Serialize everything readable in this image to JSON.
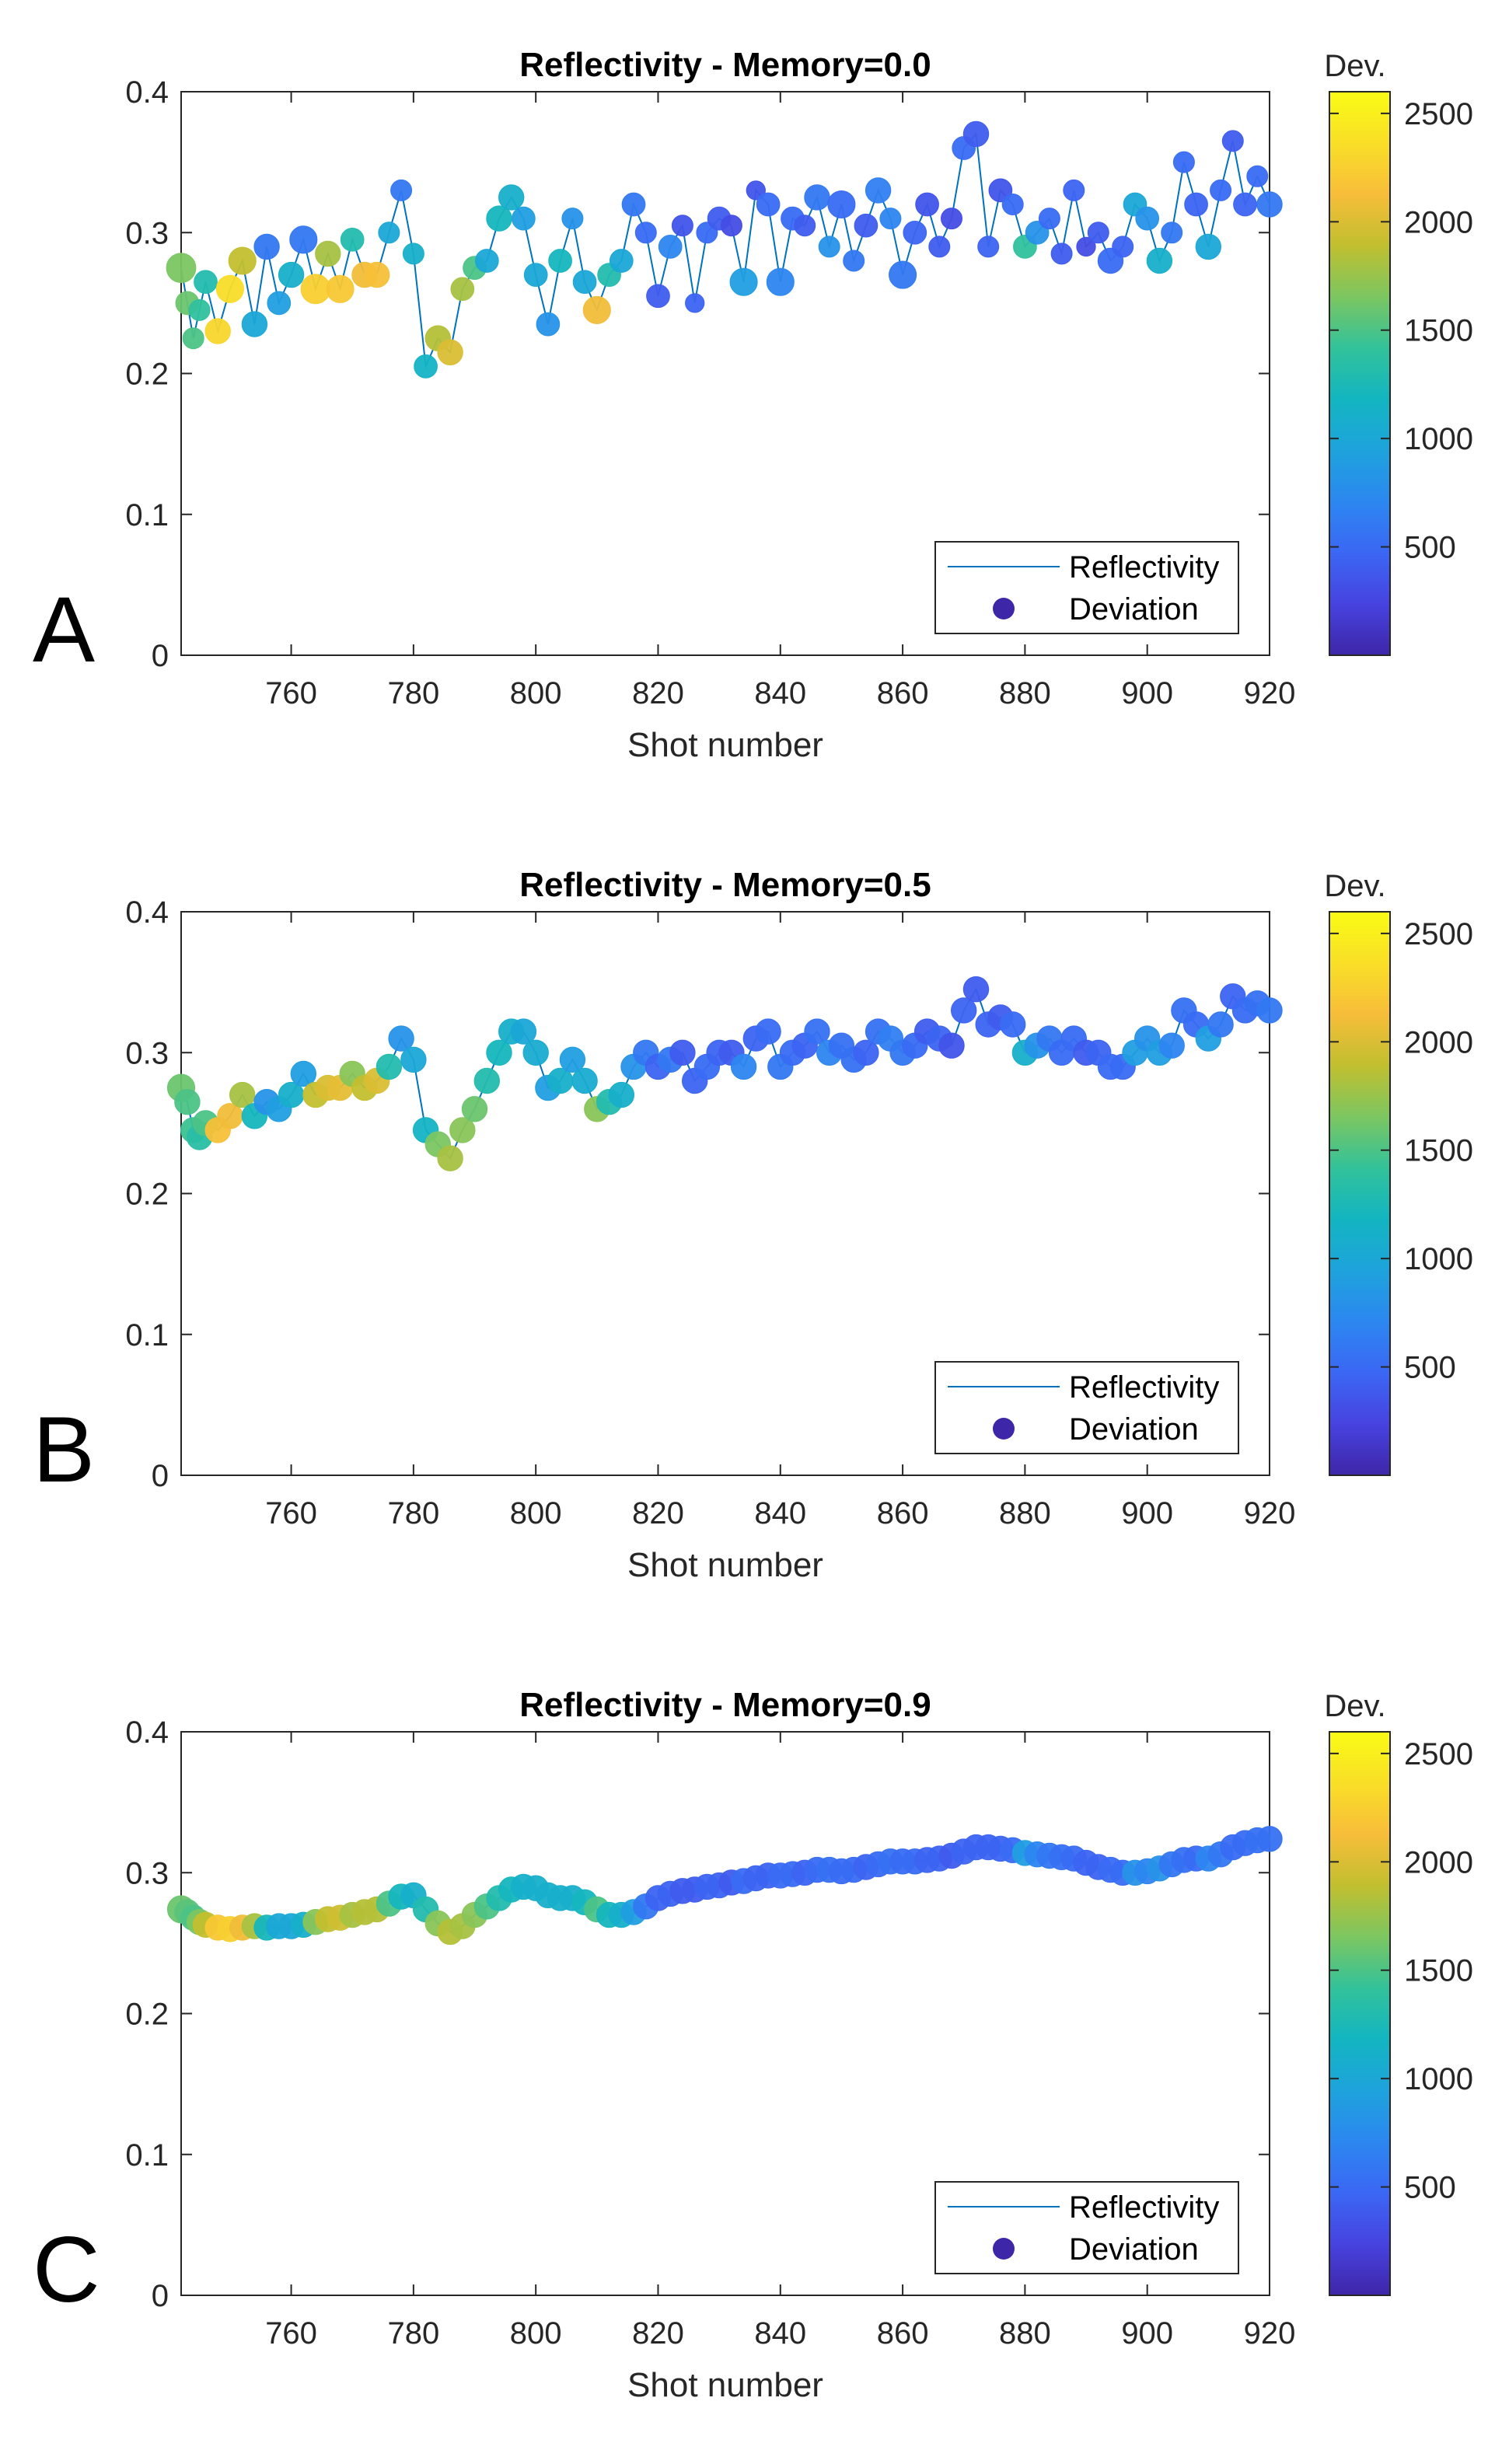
{
  "colormap": [
    "#3e26a8",
    "#4743e0",
    "#3b67f4",
    "#2c87f0",
    "#1ea3dc",
    "#13b5c1",
    "#32c29a",
    "#7cc661",
    "#c1bf2f",
    "#f7bd3a",
    "#f9df27",
    "#f9fb15"
  ],
  "line_color": "#0072bd",
  "chart_data": [
    {
      "type": "scatter",
      "panel_label": "A",
      "title": "Reflectivity  -  Memory=0.0",
      "xlabel": "Shot number",
      "ylabel": "",
      "xlim": [
        742,
        920
      ],
      "ylim": [
        0,
        0.4
      ],
      "xticks": [
        760,
        780,
        800,
        820,
        840,
        860,
        880,
        900,
        920
      ],
      "yticks": [
        0,
        0.1,
        0.2,
        0.3,
        0.4
      ],
      "ytick_labels": [
        "0",
        "0.1",
        "0.2",
        "0.3",
        "0.4"
      ],
      "legend": {
        "position": "lower-right",
        "entries": [
          "Reflectivity",
          "Deviation"
        ]
      },
      "colorbar": {
        "title": "Dev.",
        "range": [
          0,
          2600
        ],
        "ticks": [
          500,
          1000,
          1500,
          2000,
          2500
        ]
      },
      "series": [
        {
          "name": "Reflectivity",
          "kind": "line"
        },
        {
          "name": "Deviation",
          "kind": "markers",
          "color_by": "deviation"
        }
      ],
      "x": [
        742,
        743,
        744,
        745,
        746,
        748,
        750,
        752,
        754,
        756,
        758,
        760,
        762,
        764,
        766,
        768,
        770,
        772,
        774,
        776,
        778,
        780,
        782,
        784,
        786,
        788,
        790,
        792,
        794,
        796,
        798,
        800,
        802,
        804,
        806,
        808,
        810,
        812,
        814,
        816,
        818,
        820,
        822,
        824,
        826,
        828,
        830,
        832,
        834,
        836,
        838,
        840,
        842,
        844,
        846,
        848,
        850,
        852,
        854,
        856,
        858,
        860,
        862,
        864,
        866,
        868,
        870,
        872,
        874,
        876,
        878,
        880,
        882,
        884,
        886,
        888,
        890,
        892,
        894,
        896,
        898,
        900,
        902,
        904,
        906,
        908,
        910,
        912,
        914,
        916,
        918,
        920
      ],
      "y": [
        0.275,
        0.25,
        0.225,
        0.245,
        0.265,
        0.23,
        0.26,
        0.28,
        0.235,
        0.29,
        0.25,
        0.27,
        0.295,
        0.26,
        0.285,
        0.26,
        0.295,
        0.27,
        0.27,
        0.3,
        0.33,
        0.285,
        0.205,
        0.225,
        0.215,
        0.26,
        0.275,
        0.28,
        0.31,
        0.325,
        0.31,
        0.27,
        0.235,
        0.28,
        0.31,
        0.265,
        0.245,
        0.27,
        0.28,
        0.32,
        0.3,
        0.255,
        0.29,
        0.305,
        0.25,
        0.3,
        0.31,
        0.305,
        0.265,
        0.33,
        0.32,
        0.265,
        0.31,
        0.305,
        0.325,
        0.29,
        0.32,
        0.28,
        0.305,
        0.33,
        0.31,
        0.27,
        0.3,
        0.32,
        0.29,
        0.31,
        0.36,
        0.37,
        0.29,
        0.33,
        0.32,
        0.29,
        0.3,
        0.31,
        0.285,
        0.33,
        0.29,
        0.3,
        0.28,
        0.29,
        0.32,
        0.31,
        0.28,
        0.3,
        0.35,
        0.32,
        0.29,
        0.33,
        0.365,
        0.32,
        0.34,
        0.32
      ],
      "deviation": [
        1650,
        1600,
        1500,
        1400,
        1300,
        2300,
        2350,
        1900,
        1000,
        600,
        900,
        1100,
        600,
        2250,
        1800,
        2200,
        1300,
        2100,
        2150,
        1000,
        600,
        1100,
        1150,
        1850,
        2000,
        1800,
        1500,
        1000,
        1200,
        1100,
        900,
        1000,
        800,
        1200,
        800,
        1000,
        2100,
        1300,
        1000,
        600,
        500,
        400,
        700,
        350,
        450,
        500,
        400,
        300,
        900,
        350,
        500,
        700,
        500,
        400,
        600,
        800,
        500,
        600,
        400,
        650,
        700,
        600,
        450,
        350,
        400,
        300,
        500,
        400,
        450,
        350,
        500,
        1400,
        800,
        500,
        400,
        450,
        300,
        400,
        500,
        450,
        1000,
        800,
        1100,
        600,
        500,
        450,
        1000,
        500,
        400,
        450,
        500,
        600
      ],
      "marker_size": [
        14,
        11,
        10,
        10,
        11,
        12,
        13,
        13,
        12,
        12,
        11,
        12,
        13,
        14,
        12,
        13,
        11,
        12,
        12,
        10,
        10,
        10,
        11,
        12,
        12,
        11,
        11,
        11,
        12,
        12,
        11,
        11,
        11,
        11,
        10,
        11,
        13,
        11,
        11,
        11,
        10,
        11,
        11,
        10,
        9,
        10,
        11,
        10,
        13,
        9,
        11,
        13,
        11,
        10,
        12,
        10,
        13,
        10,
        11,
        12,
        10,
        13,
        11,
        11,
        10,
        10,
        11,
        12,
        10,
        11,
        10,
        11,
        11,
        10,
        10,
        10,
        9,
        10,
        12,
        10,
        11,
        11,
        12,
        10,
        10,
        11,
        12,
        10,
        10,
        11,
        10,
        12
      ]
    },
    {
      "type": "scatter",
      "panel_label": "B",
      "title": "Reflectivity  -  Memory=0.5",
      "xlabel": "Shot number",
      "ylabel": "",
      "xlim": [
        742,
        920
      ],
      "ylim": [
        0,
        0.4
      ],
      "xticks": [
        760,
        780,
        800,
        820,
        840,
        860,
        880,
        900,
        920
      ],
      "yticks": [
        0,
        0.1,
        0.2,
        0.3,
        0.4
      ],
      "ytick_labels": [
        "0",
        "0.1",
        "0.2",
        "0.3",
        "0.4"
      ],
      "legend": {
        "position": "lower-right",
        "entries": [
          "Reflectivity",
          "Deviation"
        ]
      },
      "colorbar": {
        "title": "Dev.",
        "range": [
          0,
          2600
        ],
        "ticks": [
          500,
          1000,
          1500,
          2000,
          2500
        ]
      },
      "series": [
        {
          "name": "Reflectivity",
          "kind": "line"
        },
        {
          "name": "Deviation",
          "kind": "markers",
          "color_by": "deviation"
        }
      ],
      "x": [
        742,
        743,
        744,
        745,
        746,
        748,
        750,
        752,
        754,
        756,
        758,
        760,
        762,
        764,
        766,
        768,
        770,
        772,
        774,
        776,
        778,
        780,
        782,
        784,
        786,
        788,
        790,
        792,
        794,
        796,
        798,
        800,
        802,
        804,
        806,
        808,
        810,
        812,
        814,
        816,
        818,
        820,
        822,
        824,
        826,
        828,
        830,
        832,
        834,
        836,
        838,
        840,
        842,
        844,
        846,
        848,
        850,
        852,
        854,
        856,
        858,
        860,
        862,
        864,
        866,
        868,
        870,
        872,
        874,
        876,
        878,
        880,
        882,
        884,
        886,
        888,
        890,
        892,
        894,
        896,
        898,
        900,
        902,
        904,
        906,
        908,
        910,
        912,
        914,
        916,
        918,
        920
      ],
      "y": [
        0.275,
        0.265,
        0.245,
        0.24,
        0.25,
        0.245,
        0.255,
        0.27,
        0.255,
        0.265,
        0.26,
        0.27,
        0.285,
        0.27,
        0.275,
        0.275,
        0.285,
        0.275,
        0.28,
        0.29,
        0.31,
        0.295,
        0.245,
        0.235,
        0.225,
        0.245,
        0.26,
        0.28,
        0.3,
        0.315,
        0.315,
        0.3,
        0.275,
        0.28,
        0.295,
        0.28,
        0.26,
        0.265,
        0.27,
        0.29,
        0.3,
        0.29,
        0.295,
        0.3,
        0.28,
        0.29,
        0.3,
        0.3,
        0.29,
        0.31,
        0.315,
        0.29,
        0.3,
        0.305,
        0.315,
        0.3,
        0.305,
        0.295,
        0.3,
        0.315,
        0.31,
        0.3,
        0.305,
        0.315,
        0.31,
        0.305,
        0.33,
        0.345,
        0.32,
        0.325,
        0.32,
        0.3,
        0.305,
        0.31,
        0.3,
        0.31,
        0.3,
        0.3,
        0.29,
        0.29,
        0.3,
        0.31,
        0.3,
        0.305,
        0.33,
        0.32,
        0.31,
        0.32,
        0.34,
        0.33,
        0.335,
        0.33
      ],
      "deviation": [
        1600,
        1500,
        1450,
        1350,
        1500,
        2150,
        2100,
        1800,
        1200,
        800,
        900,
        1100,
        900,
        1900,
        2000,
        2050,
        1700,
        1900,
        2000,
        1300,
        800,
        1000,
        1150,
        1650,
        1800,
        1700,
        1600,
        1300,
        1200,
        1100,
        1000,
        1050,
        900,
        1100,
        900,
        1050,
        1700,
        1300,
        1100,
        800,
        600,
        450,
        600,
        400,
        450,
        500,
        450,
        400,
        700,
        450,
        500,
        600,
        500,
        450,
        550,
        700,
        550,
        550,
        450,
        550,
        650,
        600,
        500,
        400,
        450,
        350,
        450,
        400,
        450,
        400,
        500,
        1100,
        800,
        600,
        500,
        500,
        400,
        450,
        500,
        500,
        900,
        800,
        900,
        700,
        550,
        500,
        900,
        600,
        450,
        500,
        550,
        600
      ],
      "marker_size": [
        13,
        12,
        12,
        12,
        12,
        12,
        12,
        12,
        12,
        12,
        12,
        12,
        12,
        12,
        12,
        12,
        12,
        12,
        12,
        12,
        12,
        12,
        12,
        12,
        12,
        12,
        12,
        12,
        12,
        12,
        12,
        12,
        12,
        12,
        12,
        12,
        12,
        12,
        12,
        12,
        12,
        12,
        12,
        12,
        12,
        12,
        12,
        12,
        12,
        12,
        12,
        12,
        12,
        12,
        12,
        12,
        12,
        12,
        12,
        12,
        12,
        12,
        12,
        12,
        12,
        12,
        12,
        12,
        12,
        12,
        12,
        12,
        12,
        12,
        12,
        12,
        12,
        12,
        12,
        12,
        12,
        12,
        12,
        12,
        12,
        12,
        12,
        12,
        12,
        12,
        12,
        12
      ]
    },
    {
      "type": "scatter",
      "panel_label": "C",
      "title": "Reflectivity  -  Memory=0.9",
      "xlabel": "Shot number",
      "ylabel": "",
      "xlim": [
        742,
        920
      ],
      "ylim": [
        0,
        0.4
      ],
      "xticks": [
        760,
        780,
        800,
        820,
        840,
        860,
        880,
        900,
        920
      ],
      "yticks": [
        0,
        0.1,
        0.2,
        0.3,
        0.4
      ],
      "ytick_labels": [
        "0",
        "0.1",
        "0.2",
        "0.3",
        "0.4"
      ],
      "legend": {
        "position": "lower-right",
        "entries": [
          "Reflectivity",
          "Deviation"
        ]
      },
      "colorbar": {
        "title": "Dev.",
        "range": [
          0,
          2600
        ],
        "ticks": [
          500,
          1000,
          1500,
          2000,
          2500
        ]
      },
      "series": [
        {
          "name": "Reflectivity",
          "kind": "line"
        },
        {
          "name": "Deviation",
          "kind": "markers",
          "color_by": "deviation"
        }
      ],
      "x": [
        742,
        743,
        744,
        745,
        746,
        748,
        750,
        752,
        754,
        756,
        758,
        760,
        762,
        764,
        766,
        768,
        770,
        772,
        774,
        776,
        778,
        780,
        782,
        784,
        786,
        788,
        790,
        792,
        794,
        796,
        798,
        800,
        802,
        804,
        806,
        808,
        810,
        812,
        814,
        816,
        818,
        820,
        822,
        824,
        826,
        828,
        830,
        832,
        834,
        836,
        838,
        840,
        842,
        844,
        846,
        848,
        850,
        852,
        854,
        856,
        858,
        860,
        862,
        864,
        866,
        868,
        870,
        872,
        874,
        876,
        878,
        880,
        882,
        884,
        886,
        888,
        890,
        892,
        894,
        896,
        898,
        900,
        902,
        904,
        906,
        908,
        910,
        912,
        914,
        916,
        918,
        920
      ],
      "y": [
        0.274,
        0.272,
        0.268,
        0.265,
        0.263,
        0.261,
        0.26,
        0.261,
        0.262,
        0.261,
        0.262,
        0.262,
        0.263,
        0.265,
        0.267,
        0.268,
        0.27,
        0.272,
        0.274,
        0.278,
        0.283,
        0.284,
        0.274,
        0.264,
        0.258,
        0.262,
        0.27,
        0.276,
        0.282,
        0.288,
        0.29,
        0.289,
        0.284,
        0.282,
        0.282,
        0.279,
        0.274,
        0.27,
        0.27,
        0.272,
        0.276,
        0.282,
        0.285,
        0.287,
        0.288,
        0.29,
        0.291,
        0.293,
        0.294,
        0.296,
        0.298,
        0.298,
        0.299,
        0.3,
        0.302,
        0.302,
        0.301,
        0.302,
        0.304,
        0.306,
        0.308,
        0.308,
        0.308,
        0.309,
        0.31,
        0.312,
        0.315,
        0.318,
        0.318,
        0.317,
        0.316,
        0.314,
        0.313,
        0.312,
        0.311,
        0.31,
        0.307,
        0.304,
        0.302,
        0.3,
        0.3,
        0.301,
        0.303,
        0.306,
        0.309,
        0.31,
        0.31,
        0.313,
        0.318,
        0.321,
        0.323,
        0.324
      ],
      "deviation": [
        1600,
        1550,
        1500,
        1650,
        1900,
        2200,
        2250,
        2100,
        1800,
        1200,
        1000,
        1000,
        1100,
        1700,
        1900,
        1950,
        1800,
        1850,
        1850,
        1500,
        1200,
        1100,
        1300,
        1700,
        1850,
        1800,
        1700,
        1500,
        1300,
        1200,
        1100,
        1100,
        1100,
        1100,
        1100,
        1200,
        1500,
        1200,
        1100,
        900,
        600,
        450,
        450,
        400,
        400,
        450,
        450,
        400,
        500,
        450,
        450,
        500,
        500,
        450,
        500,
        550,
        500,
        500,
        450,
        500,
        550,
        500,
        500,
        450,
        450,
        400,
        450,
        450,
        450,
        450,
        500,
        900,
        700,
        600,
        550,
        500,
        450,
        450,
        500,
        500,
        800,
        700,
        800,
        600,
        550,
        500,
        700,
        600,
        500,
        500,
        550,
        550
      ],
      "marker_size": [
        13,
        12,
        12,
        12,
        12,
        12,
        12,
        12,
        12,
        12,
        12,
        12,
        12,
        12,
        12,
        12,
        12,
        12,
        12,
        12,
        12,
        12,
        12,
        12,
        12,
        12,
        12,
        12,
        12,
        12,
        12,
        12,
        12,
        12,
        12,
        12,
        12,
        12,
        12,
        12,
        12,
        12,
        12,
        12,
        12,
        12,
        12,
        12,
        12,
        12,
        12,
        12,
        12,
        12,
        12,
        12,
        12,
        12,
        12,
        12,
        12,
        12,
        12,
        12,
        12,
        12,
        12,
        12,
        12,
        12,
        12,
        12,
        12,
        12,
        12,
        12,
        12,
        12,
        12,
        12,
        12,
        12,
        12,
        12,
        12,
        12,
        12,
        12,
        12,
        12,
        12,
        12
      ]
    }
  ]
}
